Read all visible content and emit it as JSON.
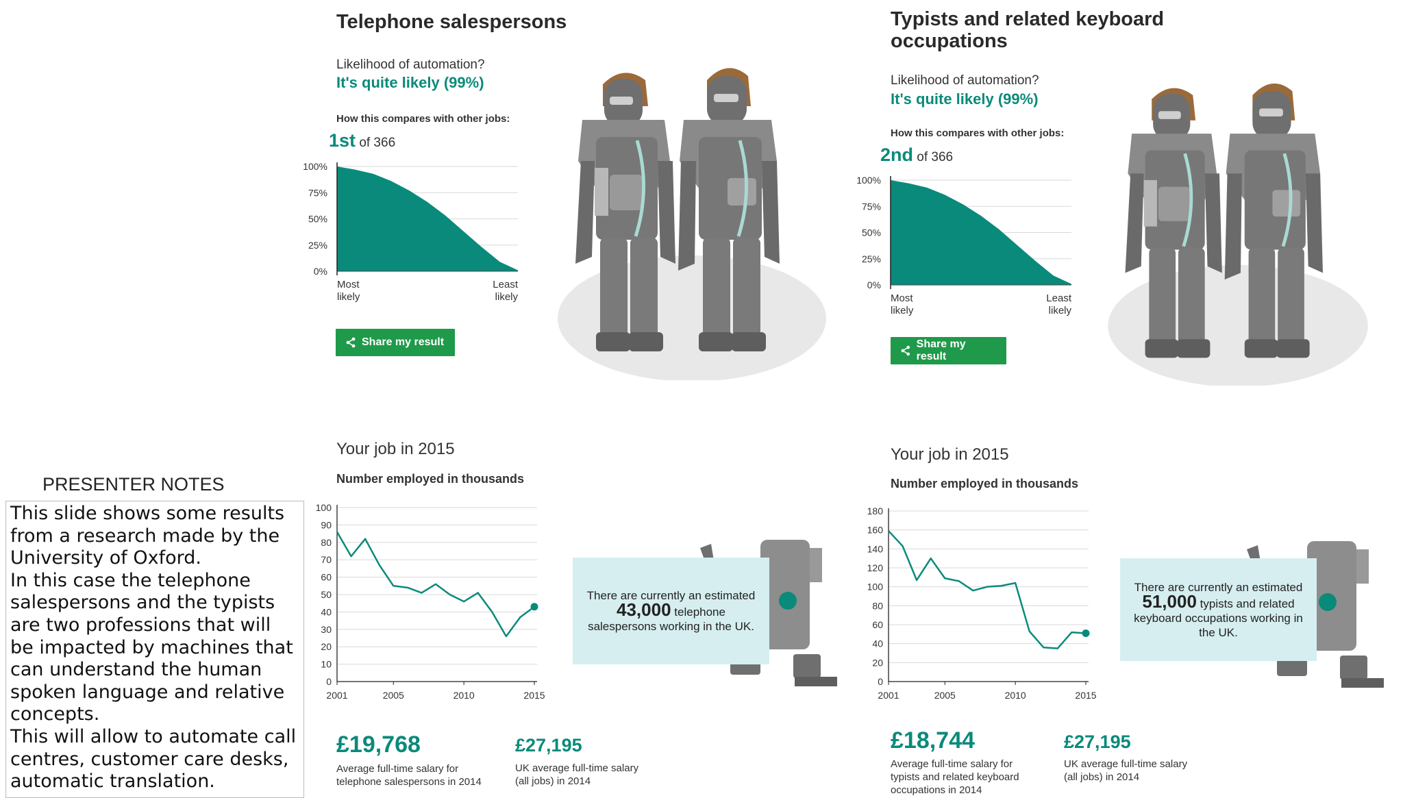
{
  "panel_left": {
    "title": "Telephone salespersons",
    "question": "Likelihood of automation?",
    "answer": "It's quite likely (99%)",
    "compare_label": "How this compares with other jobs:",
    "rank_num": "1st",
    "rank_rest": "of 366",
    "share_label": "Share my result",
    "your_job": "Your job in 2015",
    "employed_label": "Number employed in thousands",
    "info_pre": "There are currently an estimated",
    "info_num": "43,000",
    "info_post": "telephone salespersons working in the UK.",
    "salary": "£19,768",
    "salary_caption": "Average full-time salary for telephone salespersons in 2014",
    "uk_salary": "£27,195",
    "uk_salary_caption": "UK average full-time salary (all jobs) in 2014"
  },
  "panel_right": {
    "title_line1": "Typists and related keyboard",
    "title_line2": "occupations",
    "question": "Likelihood of automation?",
    "answer": "It's quite likely (99%)",
    "compare_label": "How this compares with other jobs:",
    "rank_num": "2nd",
    "rank_rest": "of 366",
    "share_label": "Share my result",
    "your_job": "Your job in 2015",
    "employed_label": "Number employed in thousands",
    "info_pre": "There are currently an estimated",
    "info_num": "51,000",
    "info_post": "typists and related keyboard occupations working in the UK.",
    "salary": "£18,744",
    "salary_caption": "Average full-time salary for typists and related keyboard occupations in 2014",
    "uk_salary": "£27,195",
    "uk_salary_caption": "UK average full-time salary (all jobs) in 2014"
  },
  "notes": {
    "heading": "PRESENTER NOTES",
    "text": "This slide shows some results from a research made by the University of Oxford.\nIn this case the telephone salespersons and the typists are two professions that will be impacted by machines that can understand the human spoken language and relative concepts.\nThis will allow to automate call centres, customer care desks, automatic translation."
  },
  "icons": [
    "share-icon",
    "robot-illustration"
  ],
  "colors": {
    "teal": "#0a8a7a",
    "share_green": "#1f9a4a",
    "info_bg": "#d6eef0"
  },
  "chart_data": [
    {
      "type": "area",
      "yticks": [
        "100%",
        "75%",
        "50%",
        "25%",
        "0%"
      ],
      "ylim": [
        0,
        100
      ],
      "xlabel_left": [
        "Most",
        "likely"
      ],
      "xlabel_right": [
        "Least",
        "likely"
      ],
      "x": [
        0,
        10,
        20,
        30,
        40,
        50,
        60,
        70,
        80,
        90,
        100
      ],
      "values": [
        100,
        97,
        93,
        86,
        77,
        66,
        53,
        38,
        23,
        9,
        1
      ]
    },
    {
      "type": "line",
      "yticks": [
        "100",
        "90",
        "80",
        "70",
        "60",
        "50",
        "40",
        "30",
        "20",
        "10",
        "0"
      ],
      "xticks": [
        "2001",
        "2005",
        "2010",
        "2015"
      ],
      "ylim": [
        0,
        100
      ],
      "x": [
        2001,
        2002,
        2003,
        2004,
        2005,
        2006,
        2007,
        2008,
        2009,
        2010,
        2011,
        2012,
        2013,
        2014,
        2015
      ],
      "values": [
        86,
        72,
        82,
        67,
        55,
        54,
        51,
        56,
        50,
        46,
        51,
        40,
        26,
        37,
        43
      ]
    },
    {
      "type": "area",
      "yticks": [
        "100%",
        "75%",
        "50%",
        "25%",
        "0%"
      ],
      "ylim": [
        0,
        100
      ],
      "xlabel_left": [
        "Most",
        "likely"
      ],
      "xlabel_right": [
        "Least",
        "likely"
      ],
      "x": [
        0,
        10,
        20,
        30,
        40,
        50,
        60,
        70,
        80,
        90,
        100
      ],
      "values": [
        100,
        97,
        93,
        86,
        77,
        66,
        53,
        38,
        23,
        9,
        1
      ]
    },
    {
      "type": "line",
      "yticks": [
        "180",
        "160",
        "140",
        "120",
        "100",
        "80",
        "60",
        "40",
        "20",
        "0"
      ],
      "xticks": [
        "2001",
        "2005",
        "2010",
        "2015"
      ],
      "ylim": [
        0,
        180
      ],
      "x": [
        2001,
        2002,
        2003,
        2004,
        2005,
        2006,
        2007,
        2008,
        2009,
        2010,
        2011,
        2012,
        2013,
        2014,
        2015
      ],
      "values": [
        159,
        143,
        107,
        130,
        109,
        106,
        96,
        100,
        101,
        104,
        53,
        36,
        35,
        52,
        51
      ]
    }
  ]
}
